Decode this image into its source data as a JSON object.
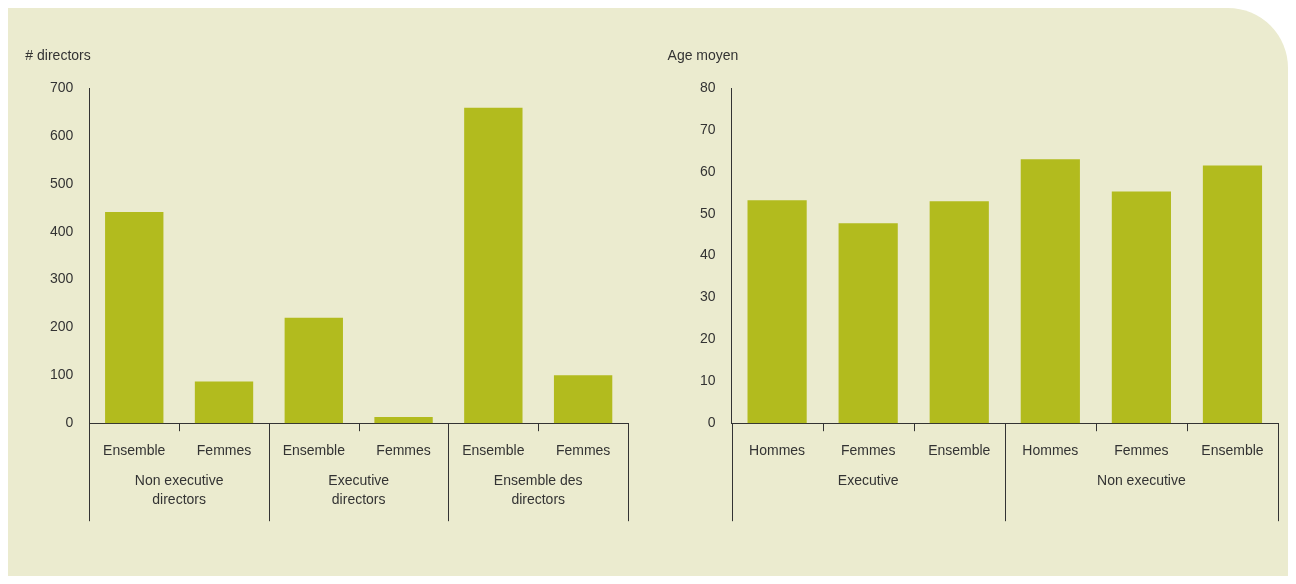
{
  "chart_data": [
    {
      "type": "bar",
      "ylabel": "# directors",
      "categories": [
        "Ensemble",
        "Femmes",
        "Ensemble",
        "Femmes",
        "Ensemble",
        "Femmes"
      ],
      "values": [
        441,
        87,
        220,
        13,
        659,
        100
      ],
      "color": "#b2bb1e",
      "ylim": [
        0,
        700
      ],
      "yticks": [
        0,
        100,
        200,
        300,
        400,
        500,
        600,
        700
      ],
      "annotations": [
        "Non executive directors",
        "Executive directors",
        "Ensemble des directors"
      ]
    },
    {
      "type": "bar",
      "ylabel": "Age moyen",
      "categories": [
        "Hommes",
        "Femmes",
        "Ensemble",
        "Hommes",
        "Femmes",
        "Ensemble"
      ],
      "values": [
        53.2,
        47.7,
        53,
        63,
        55.3,
        61.5
      ],
      "color": "#b2bb1e",
      "ylim": [
        0,
        80
      ],
      "yticks": [
        0,
        10,
        20,
        30,
        40,
        50,
        60,
        70,
        80
      ],
      "annotations": [
        "Executive",
        "Non executive"
      ]
    }
  ]
}
